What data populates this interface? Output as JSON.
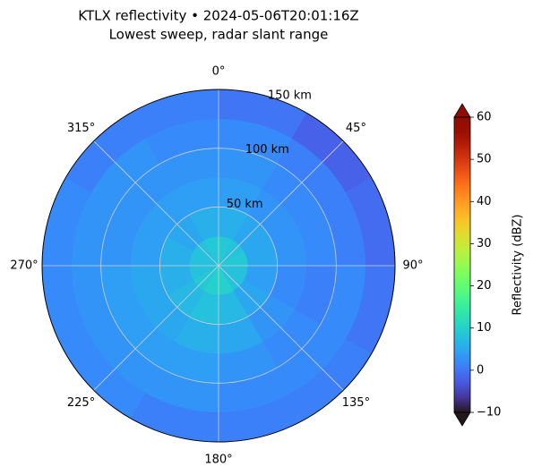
{
  "chart_data": {
    "type": "polar_heatmap",
    "title": "KTLX reflectivity • 2024-05-06T20:01:16Z",
    "subtitle": "Lowest sweep, radar slant range",
    "theta_direction": "clockwise",
    "theta_zero": "N",
    "theta_ticks": [
      {
        "value": 0,
        "label": "0°"
      },
      {
        "value": 45,
        "label": "45°"
      },
      {
        "value": 90,
        "label": "90°"
      },
      {
        "value": 135,
        "label": "135°"
      },
      {
        "value": 180,
        "label": "180°"
      },
      {
        "value": 225,
        "label": "225°"
      },
      {
        "value": 270,
        "label": "270°"
      },
      {
        "value": 315,
        "label": "315°"
      }
    ],
    "rlim": [
      0,
      150
    ],
    "rticks": [
      {
        "value": 50,
        "label": "50 km"
      },
      {
        "value": 100,
        "label": "100 km"
      },
      {
        "value": 150,
        "label": "150 km"
      }
    ],
    "azimuth_edges": [
      0,
      30,
      60,
      90,
      120,
      150,
      180,
      210,
      240,
      270,
      300,
      330,
      360
    ],
    "range_edges": [
      0,
      25,
      50,
      75,
      100,
      125,
      150
    ],
    "values": [
      [
        9,
        6,
        4,
        3,
        2,
        0
      ],
      [
        8,
        5,
        3,
        2,
        1,
        -2
      ],
      [
        9,
        5,
        3,
        2,
        1,
        -1
      ],
      [
        8,
        4,
        2,
        1,
        2,
        0
      ],
      [
        8,
        5,
        3,
        2,
        2,
        1
      ],
      [
        10,
        7,
        5,
        3,
        2,
        1
      ],
      [
        10,
        8,
        6,
        4,
        3,
        1
      ],
      [
        9,
        7,
        5,
        4,
        3,
        2
      ],
      [
        8,
        6,
        5,
        4,
        3,
        2
      ],
      [
        8,
        6,
        4,
        3,
        3,
        2
      ],
      [
        8,
        5,
        4,
        3,
        3,
        1
      ],
      [
        9,
        6,
        4,
        3,
        2,
        1
      ]
    ],
    "colorbar": {
      "label": "Reflectivity (dBZ)",
      "colormap": "turbo",
      "lim": [
        -10,
        60
      ],
      "extend": "both",
      "ticks": [
        {
          "value": -10,
          "label": "−10"
        },
        0,
        10,
        20,
        30,
        40,
        50,
        60
      ]
    }
  }
}
